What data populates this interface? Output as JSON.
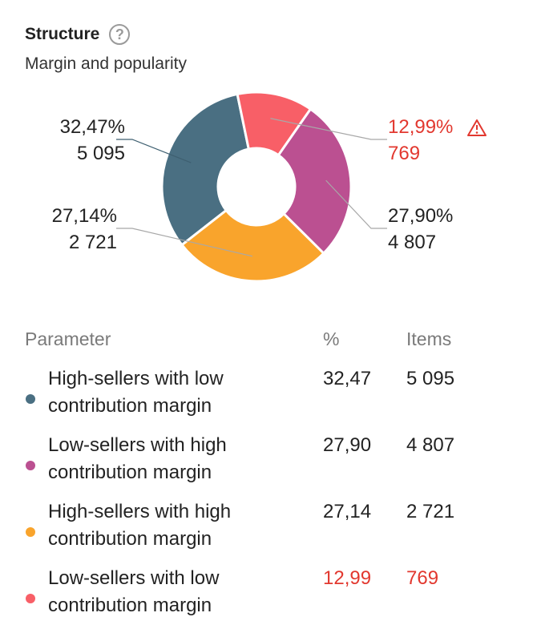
{
  "header": {
    "title": "Structure",
    "help_icon": "question-circle-icon",
    "subtitle": "Margin and popularity"
  },
  "colors": {
    "dark_blue": "#4a6f82",
    "magenta": "#bb5091",
    "orange": "#f9a42c",
    "coral": "#f85f67",
    "warning": "#e2382f",
    "leader": "#b9b9b9"
  },
  "chart_data": {
    "type": "pie",
    "style": "donut",
    "series": [
      {
        "name": "High-sellers with low contribution margin",
        "percent": 32.47,
        "percent_label": "32,47%",
        "items": 5095,
        "items_label": "5 095",
        "color": "#4a6f82",
        "warning": false
      },
      {
        "name": "Low-sellers with low contribution margin",
        "percent": 12.99,
        "percent_label": "12,99%",
        "items": 769,
        "items_label": "769",
        "color": "#f85f67",
        "warning": true
      },
      {
        "name": "Low-sellers with high contribution margin",
        "percent": 27.9,
        "percent_label": "27,90%",
        "items": 4807,
        "items_label": "4 807",
        "color": "#bb5091",
        "warning": false
      },
      {
        "name": "High-sellers with high contribution margin",
        "percent": 27.14,
        "percent_label": "27,14%",
        "items": 2721,
        "items_label": "2 721",
        "color": "#f9a42c",
        "warning": false
      }
    ]
  },
  "table": {
    "headers": {
      "parameter": "Parameter",
      "percent": "%",
      "items": "Items"
    },
    "rows": [
      {
        "line1": "High-sellers with low",
        "line2": "contribution margin",
        "percent": "32,47",
        "items": "5 095",
        "color": "#4a6f82",
        "warning": false
      },
      {
        "line1": "Low-sellers with high",
        "line2": "contribution margin",
        "percent": "27,90",
        "items": "4 807",
        "color": "#bb5091",
        "warning": false
      },
      {
        "line1": "High-sellers with high",
        "line2": "contribution margin",
        "percent": "27,14",
        "items": "2 721",
        "color": "#f9a42c",
        "warning": false
      },
      {
        "line1": "Low-sellers with low",
        "line2": "contribution margin",
        "percent": "12,99",
        "items": "769",
        "color": "#f85f67",
        "warning": true
      }
    ]
  }
}
